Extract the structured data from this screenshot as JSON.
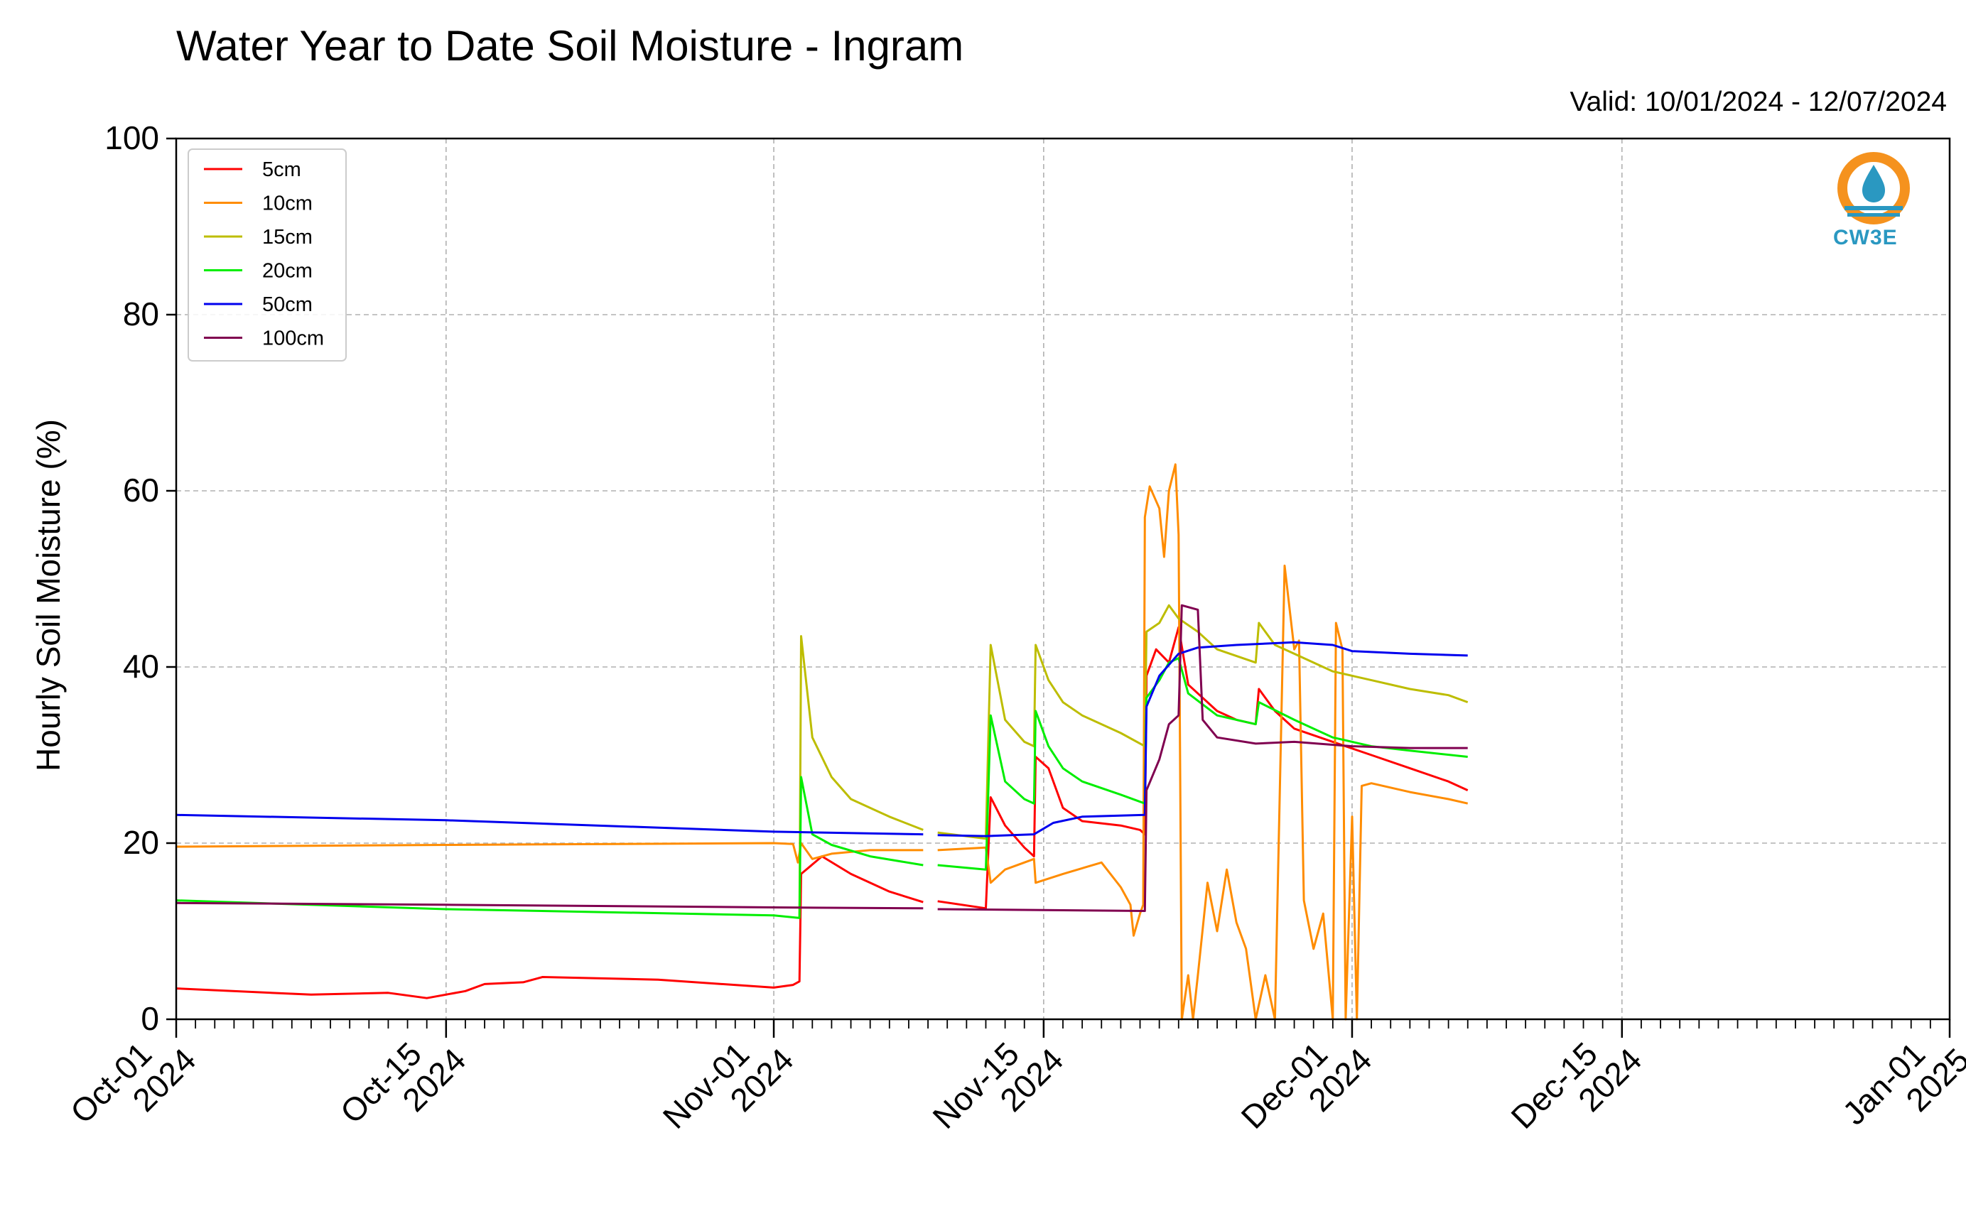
{
  "chart_data": {
    "type": "line",
    "title": "Water Year to Date Soil Moisture - Ingram",
    "valid_label": "Valid: 10/01/2024 - 12/07/2024",
    "ylabel": "Hourly Soil Moisture (%)",
    "xlabel": "",
    "ylim": [
      0,
      100
    ],
    "yticks": [
      0,
      20,
      40,
      60,
      80,
      100
    ],
    "xlim": [
      "2024-10-01",
      "2025-01-01"
    ],
    "xticks": [
      {
        "date": "2024-10-01",
        "label": [
          "Oct-01",
          "2024"
        ]
      },
      {
        "date": "2024-10-15",
        "label": [
          "Oct-15",
          "2024"
        ]
      },
      {
        "date": "2024-11-01",
        "label": [
          "Nov-01",
          "2024"
        ]
      },
      {
        "date": "2024-11-15",
        "label": [
          "Nov-15",
          "2024"
        ]
      },
      {
        "date": "2024-12-01",
        "label": [
          "Dec-01",
          "2024"
        ]
      },
      {
        "date": "2024-12-15",
        "label": [
          "Dec-15",
          "2024"
        ]
      },
      {
        "date": "2025-01-01",
        "label": [
          "Jan-01",
          "2025"
        ]
      }
    ],
    "grid": true,
    "legend_position": "top-left",
    "series": [
      {
        "name": "5cm",
        "color": "#ff0000",
        "points": [
          [
            "2024-10-01T00",
            3.5
          ],
          [
            "2024-10-08T00",
            2.8
          ],
          [
            "2024-10-12T00",
            3.0
          ],
          [
            "2024-10-14T00",
            2.4
          ],
          [
            "2024-10-16T00",
            3.2
          ],
          [
            "2024-10-17T00",
            4.0
          ],
          [
            "2024-10-19T00",
            4.2
          ],
          [
            "2024-10-20T00",
            4.8
          ],
          [
            "2024-10-26T00",
            4.5
          ],
          [
            "2024-11-01T00",
            3.6
          ],
          [
            "2024-11-02T00",
            3.9
          ],
          [
            "2024-11-02T08",
            4.3
          ],
          [
            "2024-11-02T10",
            16.5
          ],
          [
            "2024-11-03T12",
            18.5
          ],
          [
            "2024-11-05T00",
            16.5
          ],
          [
            "2024-11-07T00",
            14.5
          ],
          [
            "2024-11-08T18",
            13.3
          ],
          [
            "2024-11-09T00",
            null
          ],
          [
            "2024-11-09T12",
            13.4
          ],
          [
            "2024-11-12T00",
            12.6
          ],
          [
            "2024-11-12T06",
            25.2
          ],
          [
            "2024-11-13T00",
            22.0
          ],
          [
            "2024-11-14T00",
            19.5
          ],
          [
            "2024-11-14T12",
            18.5
          ],
          [
            "2024-11-14T14",
            29.8
          ],
          [
            "2024-11-15T06",
            28.5
          ],
          [
            "2024-11-16T00",
            24.0
          ],
          [
            "2024-11-17T00",
            22.5
          ],
          [
            "2024-11-19T00",
            22.0
          ],
          [
            "2024-11-20T00",
            21.5
          ],
          [
            "2024-11-20T06",
            21.0
          ],
          [
            "2024-11-20T08",
            39.0
          ],
          [
            "2024-11-20T20",
            42.0
          ],
          [
            "2024-11-21T12",
            40.5
          ],
          [
            "2024-11-22T00",
            44.5
          ],
          [
            "2024-11-22T12",
            38.0
          ],
          [
            "2024-11-24T00",
            35.0
          ],
          [
            "2024-11-25T00",
            34.0
          ],
          [
            "2024-11-26T00",
            33.5
          ],
          [
            "2024-11-26T04",
            37.5
          ],
          [
            "2024-11-27T00",
            35.0
          ],
          [
            "2024-11-28T00",
            33.0
          ],
          [
            "2024-11-30T00",
            31.5
          ],
          [
            "2024-12-02T00",
            30.0
          ],
          [
            "2024-12-04T00",
            28.5
          ],
          [
            "2024-12-06T00",
            27.0
          ],
          [
            "2024-12-07T00",
            26.0
          ]
        ]
      },
      {
        "name": "10cm",
        "color": "#ff8c00",
        "points": [
          [
            "2024-10-01T00",
            19.6
          ],
          [
            "2024-10-15T00",
            19.8
          ],
          [
            "2024-11-01T00",
            20.0
          ],
          [
            "2024-11-02T00",
            19.9
          ],
          [
            "2024-11-02T06",
            17.8
          ],
          [
            "2024-11-02T10",
            20.0
          ],
          [
            "2024-11-03T00",
            18.2
          ],
          [
            "2024-11-04T00",
            18.8
          ],
          [
            "2024-11-06T00",
            19.2
          ],
          [
            "2024-11-08T18",
            19.2
          ],
          [
            "2024-11-09T00",
            null
          ],
          [
            "2024-11-09T12",
            19.2
          ],
          [
            "2024-11-12T00",
            19.5
          ],
          [
            "2024-11-12T06",
            15.5
          ],
          [
            "2024-11-13T00",
            17.0
          ],
          [
            "2024-11-14T12",
            18.2
          ],
          [
            "2024-11-14T14",
            15.5
          ],
          [
            "2024-11-16T00",
            16.5
          ],
          [
            "2024-11-18T00",
            17.8
          ],
          [
            "2024-11-19T00",
            15.0
          ],
          [
            "2024-11-19T12",
            13.0
          ],
          [
            "2024-11-19T16",
            9.5
          ],
          [
            "2024-11-20T00",
            12.0
          ],
          [
            "2024-11-20T04",
            13.0
          ],
          [
            "2024-11-20T06",
            57.0
          ],
          [
            "2024-11-20T12",
            60.5
          ],
          [
            "2024-11-21T00",
            58.0
          ],
          [
            "2024-11-21T06",
            52.5
          ],
          [
            "2024-11-21T12",
            60.0
          ],
          [
            "2024-11-21T20",
            63.0
          ],
          [
            "2024-11-22T00",
            55.0
          ],
          [
            "2024-11-22T04",
            0.0
          ],
          [
            "2024-11-22T12",
            5.0
          ],
          [
            "2024-11-22T18",
            0.0
          ],
          [
            "2024-11-23T00",
            5.0
          ],
          [
            "2024-11-23T12",
            15.5
          ],
          [
            "2024-11-24T00",
            10.0
          ],
          [
            "2024-11-24T12",
            17.0
          ],
          [
            "2024-11-25T00",
            11.0
          ],
          [
            "2024-11-25T12",
            8.0
          ],
          [
            "2024-11-26T00",
            0.0
          ],
          [
            "2024-11-26T12",
            5.0
          ],
          [
            "2024-11-27T00",
            0.0
          ],
          [
            "2024-11-27T12",
            51.5
          ],
          [
            "2024-11-28T00",
            42.0
          ],
          [
            "2024-11-28T06",
            43.0
          ],
          [
            "2024-11-28T12",
            13.5
          ],
          [
            "2024-11-29T00",
            8.0
          ],
          [
            "2024-11-29T12",
            12.0
          ],
          [
            "2024-11-30T00",
            0.0
          ],
          [
            "2024-11-30T04",
            45.0
          ],
          [
            "2024-11-30T12",
            42.0
          ],
          [
            "2024-11-30T16",
            0.0
          ],
          [
            "2024-12-01T00",
            23.0
          ],
          [
            "2024-12-01T06",
            0.0
          ],
          [
            "2024-12-01T12",
            26.5
          ],
          [
            "2024-12-02T00",
            26.8
          ],
          [
            "2024-12-04T00",
            25.8
          ],
          [
            "2024-12-06T00",
            25.0
          ],
          [
            "2024-12-07T00",
            24.5
          ]
        ]
      },
      {
        "name": "15cm",
        "color": "#bdbd00",
        "points": [
          [
            "2024-11-02T08",
            11.5
          ],
          [
            "2024-11-02T10",
            43.5
          ],
          [
            "2024-11-03T00",
            32.0
          ],
          [
            "2024-11-04T00",
            27.5
          ],
          [
            "2024-11-05T00",
            25.0
          ],
          [
            "2024-11-07T00",
            23.0
          ],
          [
            "2024-11-08T18",
            21.5
          ],
          [
            "2024-11-09T00",
            null
          ],
          [
            "2024-11-09T12",
            21.2
          ],
          [
            "2024-11-12T00",
            20.5
          ],
          [
            "2024-11-12T06",
            42.5
          ],
          [
            "2024-11-13T00",
            34.0
          ],
          [
            "2024-11-14T00",
            31.5
          ],
          [
            "2024-11-14T12",
            31.0
          ],
          [
            "2024-11-14T14",
            42.5
          ],
          [
            "2024-11-15T06",
            38.5
          ],
          [
            "2024-11-16T00",
            36.0
          ],
          [
            "2024-11-17T00",
            34.5
          ],
          [
            "2024-11-19T00",
            32.5
          ],
          [
            "2024-11-20T06",
            31.0
          ],
          [
            "2024-11-20T08",
            44.0
          ],
          [
            "2024-11-21T00",
            45.0
          ],
          [
            "2024-11-21T12",
            47.0
          ],
          [
            "2024-11-22T00",
            45.5
          ],
          [
            "2024-11-23T00",
            44.0
          ],
          [
            "2024-11-24T00",
            42.0
          ],
          [
            "2024-11-26T00",
            40.5
          ],
          [
            "2024-11-26T04",
            45.0
          ],
          [
            "2024-11-27T00",
            42.5
          ],
          [
            "2024-11-28T00",
            41.5
          ],
          [
            "2024-11-30T00",
            39.5
          ],
          [
            "2024-12-02T00",
            38.5
          ],
          [
            "2024-12-04T00",
            37.5
          ],
          [
            "2024-12-06T00",
            36.8
          ],
          [
            "2024-12-07T00",
            36.0
          ]
        ]
      },
      {
        "name": "20cm",
        "color": "#00ee00",
        "points": [
          [
            "2024-10-01T00",
            13.5
          ],
          [
            "2024-10-15T00",
            12.5
          ],
          [
            "2024-11-01T00",
            11.8
          ],
          [
            "2024-11-02T08",
            11.5
          ],
          [
            "2024-11-02T10",
            27.5
          ],
          [
            "2024-11-03T00",
            21.0
          ],
          [
            "2024-11-04T00",
            19.8
          ],
          [
            "2024-11-06T00",
            18.5
          ],
          [
            "2024-11-08T18",
            17.5
          ],
          [
            "2024-11-09T00",
            null
          ],
          [
            "2024-11-09T12",
            17.5
          ],
          [
            "2024-11-12T00",
            17.0
          ],
          [
            "2024-11-12T06",
            34.5
          ],
          [
            "2024-11-13T00",
            27.0
          ],
          [
            "2024-11-14T00",
            25.0
          ],
          [
            "2024-11-14T12",
            24.5
          ],
          [
            "2024-11-14T14",
            35.0
          ],
          [
            "2024-11-15T06",
            31.0
          ],
          [
            "2024-11-16T00",
            28.5
          ],
          [
            "2024-11-17T00",
            27.0
          ],
          [
            "2024-11-19T00",
            25.5
          ],
          [
            "2024-11-20T06",
            24.5
          ],
          [
            "2024-11-20T08",
            36.5
          ],
          [
            "2024-11-21T00",
            38.5
          ],
          [
            "2024-11-21T12",
            40.5
          ],
          [
            "2024-11-22T00",
            41.0
          ],
          [
            "2024-11-22T12",
            37.0
          ],
          [
            "2024-11-24T00",
            34.5
          ],
          [
            "2024-11-26T00",
            33.5
          ],
          [
            "2024-11-26T04",
            36.0
          ],
          [
            "2024-11-28T00",
            34.0
          ],
          [
            "2024-11-30T00",
            32.0
          ],
          [
            "2024-12-02T00",
            31.0
          ],
          [
            "2024-12-04T00",
            30.5
          ],
          [
            "2024-12-07T00",
            29.8
          ]
        ]
      },
      {
        "name": "50cm",
        "color": "#0000ee",
        "points": [
          [
            "2024-10-01T00",
            23.2
          ],
          [
            "2024-10-15T00",
            22.6
          ],
          [
            "2024-11-01T00",
            21.3
          ],
          [
            "2024-11-08T18",
            21.0
          ],
          [
            "2024-11-09T00",
            null
          ],
          [
            "2024-11-09T12",
            20.9
          ],
          [
            "2024-11-12T00",
            20.8
          ],
          [
            "2024-11-14T12",
            21.0
          ],
          [
            "2024-11-15T12",
            22.3
          ],
          [
            "2024-11-17T00",
            23.0
          ],
          [
            "2024-11-20T06",
            23.2
          ],
          [
            "2024-11-20T08",
            35.5
          ],
          [
            "2024-11-21T00",
            39.0
          ],
          [
            "2024-11-22T00",
            41.5
          ],
          [
            "2024-11-23T00",
            42.2
          ],
          [
            "2024-11-25T00",
            42.5
          ],
          [
            "2024-11-28T00",
            42.8
          ],
          [
            "2024-11-30T00",
            42.5
          ],
          [
            "2024-12-01T00",
            41.8
          ],
          [
            "2024-12-04T00",
            41.5
          ],
          [
            "2024-12-07T00",
            41.3
          ]
        ]
      },
      {
        "name": "100cm",
        "color": "#800050",
        "points": [
          [
            "2024-10-01T00",
            13.2
          ],
          [
            "2024-10-15T00",
            13.0
          ],
          [
            "2024-11-01T00",
            12.7
          ],
          [
            "2024-11-08T18",
            12.6
          ],
          [
            "2024-11-09T00",
            null
          ],
          [
            "2024-11-09T12",
            12.5
          ],
          [
            "2024-11-20T06",
            12.3
          ],
          [
            "2024-11-20T08",
            26.0
          ],
          [
            "2024-11-21T00",
            29.5
          ],
          [
            "2024-11-21T12",
            33.5
          ],
          [
            "2024-11-22T00",
            34.5
          ],
          [
            "2024-11-22T04",
            47.0
          ],
          [
            "2024-11-23T00",
            46.5
          ],
          [
            "2024-11-23T06",
            34.0
          ],
          [
            "2024-11-24T00",
            32.0
          ],
          [
            "2024-11-26T00",
            31.3
          ],
          [
            "2024-11-28T00",
            31.5
          ],
          [
            "2024-12-01T00",
            31.0
          ],
          [
            "2024-12-04T00",
            30.8
          ],
          [
            "2024-12-07T00",
            30.8
          ]
        ]
      }
    ]
  },
  "logo": {
    "text": "CW3E",
    "ring_color": "#f5921e",
    "wave_color": "#2a98c1"
  }
}
